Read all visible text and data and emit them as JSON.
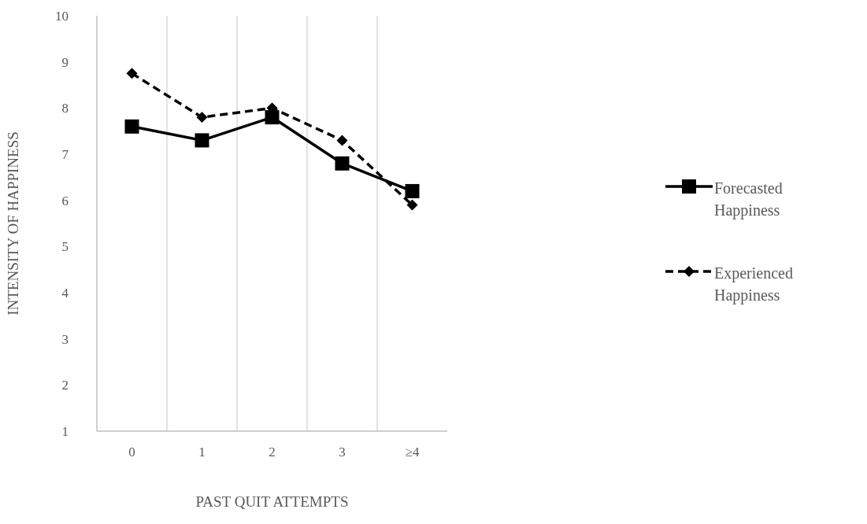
{
  "chart_data": {
    "type": "line",
    "xlabel": "PAST QUIT ATTEMPTS",
    "ylabel": "INTENSITY OF HAPPINESS",
    "categories": [
      "0",
      "1",
      "2",
      "3",
      "≥4"
    ],
    "series": [
      {
        "name": "Forecasted Happiness",
        "color": "#000000",
        "values": [
          7.6,
          7.3,
          7.8,
          6.8,
          6.2
        ],
        "marker": "square",
        "line_style": "solid"
      },
      {
        "name": "Experienced Happiness",
        "color": "#000000",
        "values": [
          8.75,
          7.8,
          8.0,
          7.3,
          5.9
        ],
        "marker": "diamond",
        "line_style": "dashed"
      }
    ],
    "ylim": [
      1,
      10
    ],
    "yticks": [
      1,
      2,
      3,
      4,
      5,
      6,
      7,
      8,
      9,
      10
    ],
    "grid": "x",
    "legend": "right"
  }
}
